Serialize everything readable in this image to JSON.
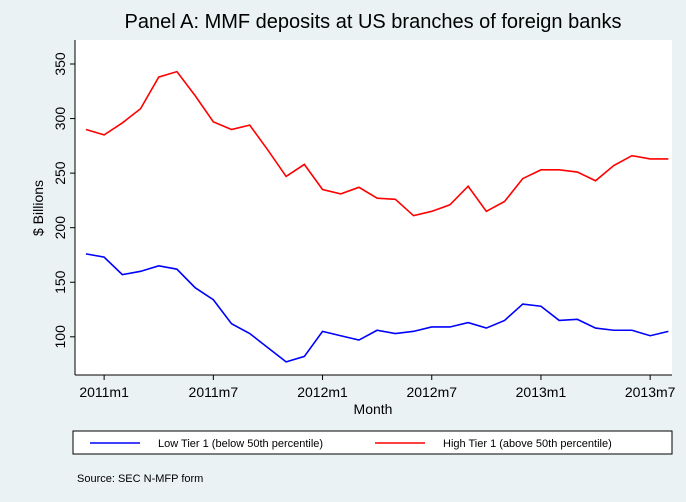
{
  "chart_data": {
    "type": "line",
    "title": "Panel A: MMF deposits at US branches of foreign banks",
    "ylabel": "$ Billions",
    "xlabel": "Month",
    "source": "Source: SEC N-MFP form",
    "x": [
      611,
      612,
      613,
      614,
      615,
      616,
      617,
      618,
      619,
      620,
      621,
      622,
      623,
      624,
      625,
      626,
      627,
      628,
      629,
      630,
      631,
      632,
      633,
      634,
      635,
      636,
      637,
      638,
      639,
      640,
      641,
      642,
      643
    ],
    "series": [
      {
        "name": "Low Tier 1 (below 50th percentile)",
        "color": "#0000ff",
        "values": [
          176,
          173,
          157,
          160,
          165,
          162,
          145,
          134,
          112,
          103,
          90,
          77,
          82,
          105,
          101,
          97,
          106,
          103,
          105,
          109,
          109,
          113,
          108,
          115,
          130,
          128,
          115,
          116,
          108,
          106,
          106,
          101,
          105
        ]
      },
      {
        "name": "High Tier 1 (above 50th percentile)",
        "color": "#ff0000",
        "values": [
          290,
          285,
          296,
          309,
          338,
          343,
          321,
          297,
          290,
          294,
          271,
          247,
          258,
          235,
          231,
          237,
          227,
          226,
          211,
          215,
          221,
          238,
          215,
          224,
          245,
          253,
          253,
          251,
          243,
          257,
          266,
          263,
          263
        ]
      }
    ],
    "xlim": [
      610.4,
      643.2
    ],
    "xticks": [
      {
        "value": 612,
        "label": "2011m1"
      },
      {
        "value": 618,
        "label": "2011m7"
      },
      {
        "value": 624,
        "label": "2012m1"
      },
      {
        "value": 630,
        "label": "2012m7"
      },
      {
        "value": 636,
        "label": "2013m1"
      },
      {
        "value": 642,
        "label": "2013m7"
      }
    ],
    "ylim": [
      65,
      372
    ],
    "yticks": [
      100,
      150,
      200,
      250,
      300,
      350
    ],
    "legend": "bottom"
  }
}
